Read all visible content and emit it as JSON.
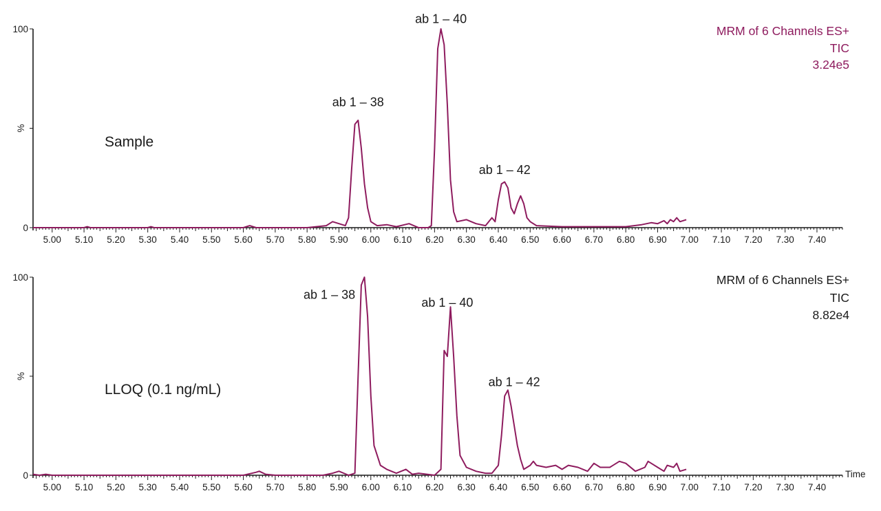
{
  "colors": {
    "trace": "#8e1b5e",
    "header_top": "#8e1b5e",
    "header_bottom": "#1a1a1a",
    "axis": "#1a1a1a"
  },
  "chart_data": [
    {
      "type": "line",
      "panel_label": "Sample",
      "header": [
        "MRM of 6 Channels ES+",
        "TIC",
        "3.24e5"
      ],
      "ylabel": "%",
      "xlabel": "",
      "xlim": [
        4.94,
        7.48
      ],
      "ylim": [
        0,
        100
      ],
      "x_ticks": [
        "5.00",
        "5.10",
        "5.20",
        "5.30",
        "5.40",
        "5.50",
        "5.60",
        "5.70",
        "5.80",
        "5.90",
        "6.00",
        "6.10",
        "6.20",
        "6.30",
        "6.40",
        "6.50",
        "6.60",
        "6.70",
        "6.80",
        "6.90",
        "7.00",
        "7.10",
        "7.20",
        "7.30",
        "7.40"
      ],
      "y_ticks": [
        "0",
        "100"
      ],
      "y_mid_label": "%",
      "peak_labels": [
        {
          "text": "ab 1 – 38",
          "x": 5.96,
          "y": 61
        },
        {
          "text": "ab 1 – 40",
          "x": 6.22,
          "y": 103
        },
        {
          "text": "ab 1 – 42",
          "x": 6.42,
          "y": 27
        }
      ],
      "series": [
        {
          "x": [
            4.94,
            5.1,
            5.11,
            5.12,
            5.3,
            5.31,
            5.32,
            5.6,
            5.62,
            5.64,
            5.8,
            5.86,
            5.88,
            5.9,
            5.92,
            5.93,
            5.94,
            5.95,
            5.96,
            5.97,
            5.98,
            5.99,
            6.0,
            6.02,
            6.05,
            6.08,
            6.12,
            6.15,
            6.18,
            6.19,
            6.2,
            6.21,
            6.22,
            6.23,
            6.24,
            6.25,
            6.26,
            6.27,
            6.3,
            6.33,
            6.36,
            6.38,
            6.39,
            6.4,
            6.41,
            6.42,
            6.43,
            6.44,
            6.45,
            6.46,
            6.47,
            6.48,
            6.49,
            6.5,
            6.52,
            6.6,
            6.7,
            6.8,
            6.85,
            6.88,
            6.9,
            6.92,
            6.93,
            6.94,
            6.95,
            6.96,
            6.97,
            6.99
          ],
          "y": [
            0,
            0,
            0.5,
            0,
            0,
            0.5,
            0,
            0,
            1,
            0,
            0,
            1,
            3,
            2,
            1,
            5,
            30,
            52,
            54,
            40,
            22,
            10,
            3,
            1,
            1.5,
            0.5,
            2,
            0,
            0,
            1,
            40,
            90,
            100,
            92,
            62,
            24,
            8,
            3,
            4,
            2,
            1,
            5,
            3,
            14,
            22,
            23,
            20,
            10,
            7,
            12,
            16,
            12,
            5,
            3,
            1,
            0.5,
            0.5,
            0.5,
            1.5,
            2.5,
            2,
            3.5,
            2,
            4,
            3,
            5,
            3,
            4
          ]
        }
      ]
    },
    {
      "type": "line",
      "panel_label": "LLOQ (0.1 ng/mL)",
      "header": [
        "MRM of 6 Channels ES+",
        "TIC",
        "8.82e4"
      ],
      "ylabel": "%",
      "xlabel": "Time",
      "xlim": [
        4.94,
        7.48
      ],
      "ylim": [
        0,
        100
      ],
      "x_ticks": [
        "5.00",
        "5.10",
        "5.20",
        "5.30",
        "5.40",
        "5.50",
        "5.60",
        "5.70",
        "5.80",
        "5.90",
        "6.00",
        "6.10",
        "6.20",
        "6.30",
        "6.40",
        "6.50",
        "6.60",
        "6.70",
        "6.80",
        "6.90",
        "7.00",
        "7.10",
        "7.20",
        "7.30",
        "7.40"
      ],
      "y_ticks": [
        "0",
        "100"
      ],
      "y_mid_label": "%",
      "peak_labels": [
        {
          "text": "ab 1 – 38",
          "x": 5.87,
          "y": 89
        },
        {
          "text": "ab 1 – 40",
          "x": 6.24,
          "y": 85
        },
        {
          "text": "ab 1 – 42",
          "x": 6.45,
          "y": 45
        }
      ],
      "series": [
        {
          "x": [
            4.94,
            4.96,
            4.98,
            5.0,
            5.2,
            5.3,
            5.6,
            5.64,
            5.65,
            5.67,
            5.7,
            5.85,
            5.88,
            5.9,
            5.93,
            5.95,
            5.96,
            5.97,
            5.98,
            5.99,
            6.0,
            6.01,
            6.03,
            6.05,
            6.08,
            6.11,
            6.13,
            6.15,
            6.2,
            6.22,
            6.23,
            6.24,
            6.25,
            6.26,
            6.27,
            6.28,
            6.3,
            6.33,
            6.36,
            6.38,
            6.4,
            6.41,
            6.42,
            6.43,
            6.44,
            6.45,
            6.46,
            6.47,
            6.48,
            6.5,
            6.51,
            6.52,
            6.55,
            6.58,
            6.6,
            6.62,
            6.65,
            6.68,
            6.7,
            6.72,
            6.75,
            6.78,
            6.8,
            6.83,
            6.86,
            6.87,
            6.88,
            6.9,
            6.92,
            6.93,
            6.95,
            6.96,
            6.97,
            6.99
          ],
          "y": [
            0.5,
            0,
            0.5,
            0,
            0,
            0,
            0,
            1.5,
            2,
            0.5,
            0,
            0,
            1,
            2,
            0,
            1,
            50,
            96,
            100,
            80,
            40,
            15,
            5,
            3,
            1,
            3,
            0.5,
            1,
            0,
            3,
            63,
            60,
            85,
            60,
            30,
            10,
            4,
            2,
            1,
            1,
            5,
            20,
            40,
            43,
            35,
            25,
            15,
            8,
            3,
            5,
            7,
            5,
            4,
            5,
            3,
            5,
            4,
            2,
            6,
            4,
            4,
            7,
            6,
            2,
            4,
            7,
            6,
            4,
            2,
            5,
            4,
            6,
            2,
            3
          ]
        }
      ]
    }
  ],
  "time_axis_label": "Time"
}
